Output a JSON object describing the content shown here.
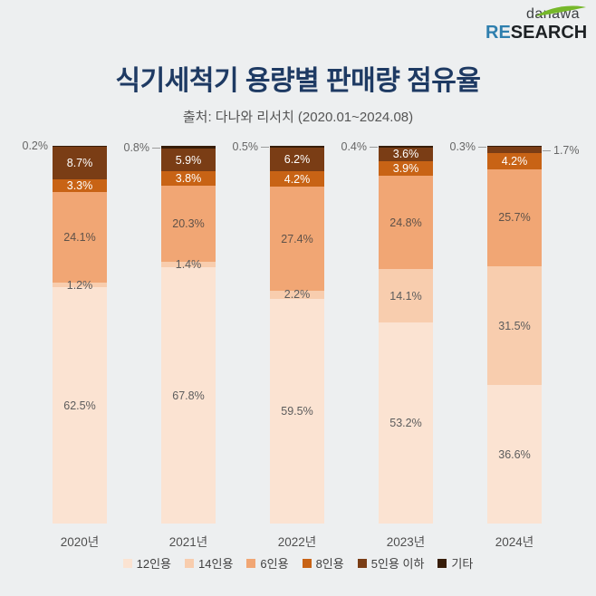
{
  "page": {
    "background": "#edeff0"
  },
  "logo": {
    "danawa": "danawa",
    "research_re": "RE",
    "research_rest": "SEARCH",
    "swoosh_color": "#76b82a",
    "re_color": "#2f7fae"
  },
  "header": {
    "title": "식기세척기 용량별 판매량 점유율",
    "subtitle": "출처: 다나와 리서치 (2020.01~2024.08)",
    "title_color": "#1e3a63"
  },
  "chart_data": {
    "type": "bar",
    "stacked": true,
    "title": "식기세척기 용량별 판매량 점유율",
    "unit": "%",
    "ylim": [
      0,
      100
    ],
    "grid": false,
    "legend_position": "bottom",
    "categories": [
      "2020년",
      "2021년",
      "2022년",
      "2023년",
      "2024년"
    ],
    "series": [
      {
        "name": "12인용",
        "color": "#fbe3d2",
        "text_color": "#5c5c5c",
        "values": [
          62.5,
          67.8,
          59.5,
          53.2,
          36.6
        ]
      },
      {
        "name": "14인용",
        "color": "#f8cdae",
        "text_color": "#5c5c5c",
        "values": [
          1.2,
          1.4,
          2.2,
          14.1,
          31.5
        ]
      },
      {
        "name": "6인용",
        "color": "#f1a674",
        "text_color": "#5f5249",
        "values": [
          24.1,
          20.3,
          27.4,
          24.8,
          25.7
        ]
      },
      {
        "name": "8인용",
        "color": "#c86315",
        "text_color": "#ffffff",
        "values": [
          3.3,
          3.8,
          4.2,
          3.9,
          4.2
        ]
      },
      {
        "name": "5인용 이하",
        "color": "#7a3d15",
        "text_color": "#ffffff",
        "values": [
          8.7,
          5.9,
          6.2,
          3.6,
          1.7
        ]
      },
      {
        "name": "기타",
        "color": "#371d09",
        "text_color": "#ffffff",
        "values": [
          0.2,
          0.8,
          0.5,
          0.4,
          0.3
        ]
      }
    ],
    "outside_labels": [
      {
        "series": "기타",
        "year_index": 0,
        "text": "0.2%",
        "side": "left",
        "connector": false
      },
      {
        "series": "기타",
        "year_index": 1,
        "text": "0.8%",
        "side": "left",
        "connector": true
      },
      {
        "series": "기타",
        "year_index": 2,
        "text": "0.5%",
        "side": "left",
        "connector": true
      },
      {
        "series": "기타",
        "year_index": 3,
        "text": "0.4%",
        "side": "left",
        "connector": true
      },
      {
        "series": "기타",
        "year_index": 4,
        "text": "0.3%",
        "side": "left",
        "connector": true
      },
      {
        "series": "5인용 이하",
        "year_index": 4,
        "text": "1.7%",
        "side": "right",
        "connector": true
      }
    ],
    "inside_label_skip": [
      {
        "series": "기타",
        "all_years": true
      },
      {
        "series": "5인용 이하",
        "year_index": 4
      }
    ]
  }
}
